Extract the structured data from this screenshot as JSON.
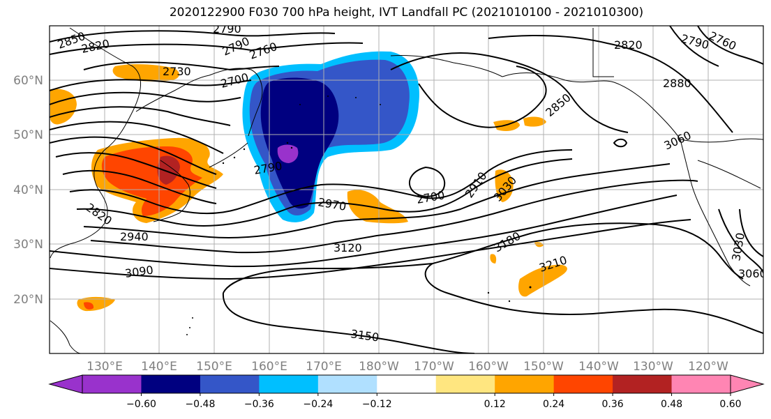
{
  "title": "2020122900 F030 700 hPa height, IVT Landfall PC (2021010100 - 2021010300)",
  "lat_labels": [
    "60°N",
    "50°N",
    "40°N",
    "30°N",
    "20°N"
  ],
  "lon_labels": [
    "130°E",
    "140°E",
    "150°E",
    "160°E",
    "170°E",
    "180°W",
    "170°W",
    "160°W",
    "150°W",
    "140°W",
    "130°W",
    "120°W"
  ],
  "contour_labels": [
    "2850",
    "2820",
    "2790",
    "2790",
    "2760",
    "2730",
    "2700",
    "2790",
    "2760",
    "2820",
    "2880",
    "2850",
    "3060",
    "2940",
    "2970",
    "2700",
    "2910",
    "3030",
    "3120",
    "3180",
    "3210",
    "3090",
    "3150",
    "3030",
    "3060",
    "2820",
    "2790"
  ],
  "colorbar": {
    "ticks": [
      "−0.60",
      "−0.48",
      "−0.36",
      "−0.24",
      "−0.12",
      "0.12",
      "0.24",
      "0.36",
      "0.48",
      "0.60"
    ],
    "colors": [
      "#9932cc",
      "#000080",
      "#3456c8",
      "#00bfff",
      "#b0e0ff",
      "#ffffff",
      "#ffe680",
      "#ffa500",
      "#ff4500",
      "#b22222",
      "#ff85b3",
      "#ff85b3"
    ]
  }
}
